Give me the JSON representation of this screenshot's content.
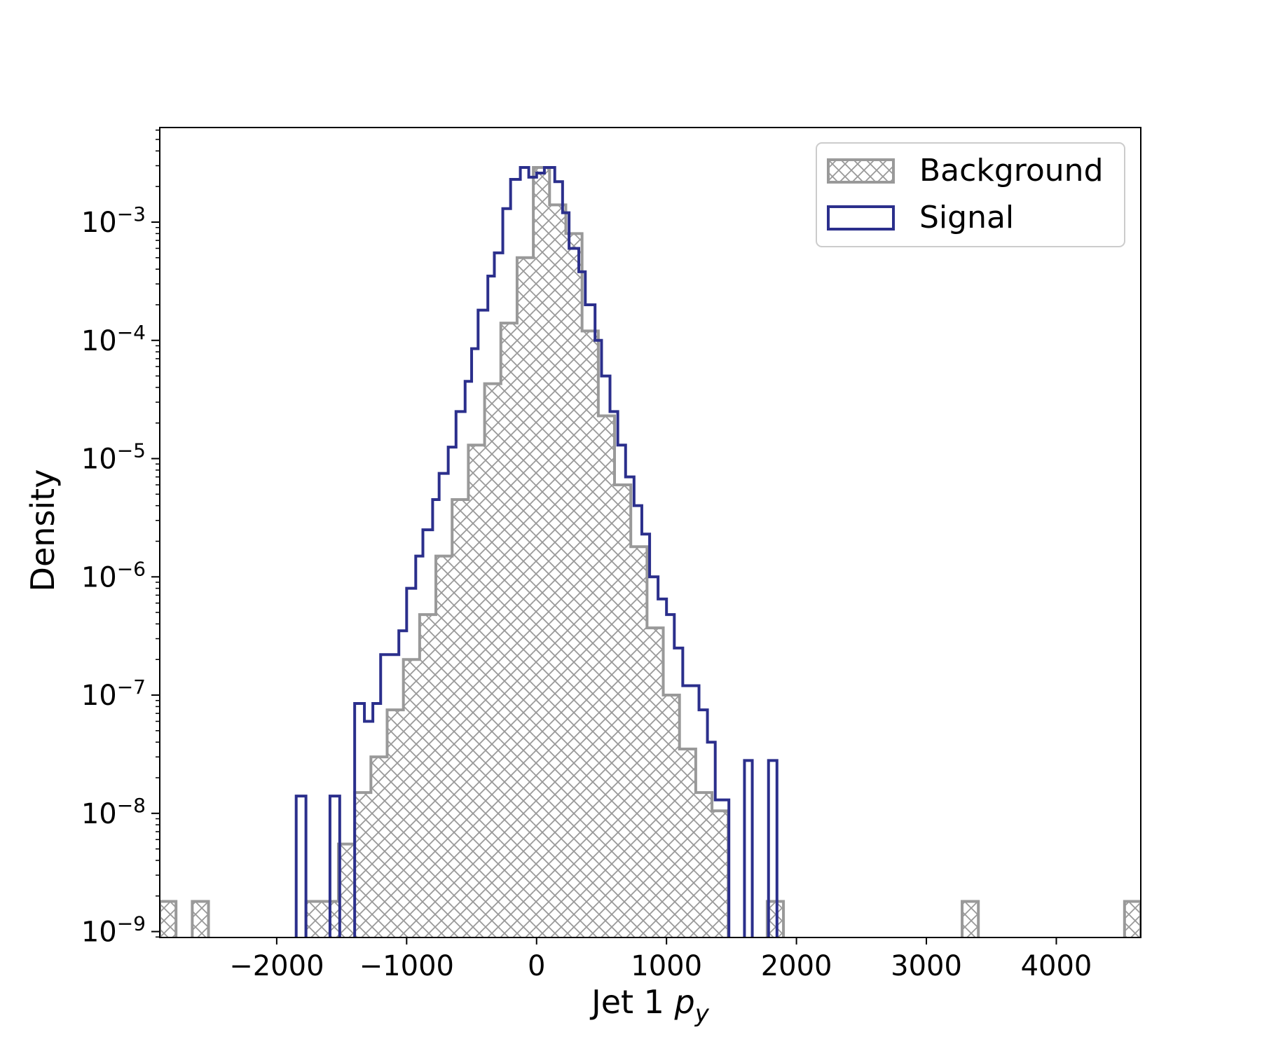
{
  "chart_data": {
    "type": "histogram",
    "xlabel": "Jet 1",
    "xlabel_symbol": "p",
    "xlabel_subscript": "y",
    "ylabel": "Density",
    "yscale": "log",
    "xlim": [
      -2900,
      4650
    ],
    "ylim_exponent": [
      -9.05,
      -2.2
    ],
    "grid": false,
    "legend_position": "top-right",
    "x_ticks": [
      {
        "value": -2000,
        "label": "−2000"
      },
      {
        "value": -1000,
        "label": "−1000"
      },
      {
        "value": 0,
        "label": "0"
      },
      {
        "value": 1000,
        "label": "1000"
      },
      {
        "value": 2000,
        "label": "2000"
      },
      {
        "value": 3000,
        "label": "3000"
      },
      {
        "value": 4000,
        "label": "4000"
      }
    ],
    "y_ticks": [
      {
        "exponent": -9,
        "base": "10",
        "sup": "−9"
      },
      {
        "exponent": -8,
        "base": "10",
        "sup": "−8"
      },
      {
        "exponent": -7,
        "base": "10",
        "sup": "−7"
      },
      {
        "exponent": -6,
        "base": "10",
        "sup": "−6"
      },
      {
        "exponent": -5,
        "base": "10",
        "sup": "−5"
      },
      {
        "exponent": -4,
        "base": "10",
        "sup": "−4"
      },
      {
        "exponent": -3,
        "base": "10",
        "sup": "−3"
      }
    ],
    "series": [
      {
        "name": "Background",
        "style": "hatched",
        "color": "#999999",
        "bins": [
          {
            "x0": -2900,
            "x1": -2775,
            "y": 1.8e-09
          },
          {
            "x0": -2650,
            "x1": -2525,
            "y": 1.8e-09
          },
          {
            "x0": -1775,
            "x1": -1525,
            "y": 1.8e-09
          },
          {
            "x0": -1525,
            "x1": -1400,
            "y": 5.5e-09
          },
          {
            "x0": -1400,
            "x1": -1275,
            "y": 1.5e-08
          },
          {
            "x0": -1275,
            "x1": -1150,
            "y": 3e-08
          },
          {
            "x0": -1150,
            "x1": -1025,
            "y": 7.5e-08
          },
          {
            "x0": -1025,
            "x1": -900,
            "y": 2e-07
          },
          {
            "x0": -900,
            "x1": -775,
            "y": 4.8e-07
          },
          {
            "x0": -775,
            "x1": -650,
            "y": 1.5e-06
          },
          {
            "x0": -650,
            "x1": -525,
            "y": 4.5e-06
          },
          {
            "x0": -525,
            "x1": -400,
            "y": 1.3e-05
          },
          {
            "x0": -400,
            "x1": -275,
            "y": 4.3e-05
          },
          {
            "x0": -275,
            "x1": -150,
            "y": 0.00014
          },
          {
            "x0": -150,
            "x1": -25,
            "y": 0.0005
          },
          {
            "x0": -25,
            "x1": 100,
            "y": 0.0029
          },
          {
            "x0": 100,
            "x1": 225,
            "y": 0.0014
          },
          {
            "x0": 225,
            "x1": 350,
            "y": 0.0008
          },
          {
            "x0": 350,
            "x1": 475,
            "y": 0.00012
          },
          {
            "x0": 475,
            "x1": 600,
            "y": 2.3e-05
          },
          {
            "x0": 600,
            "x1": 725,
            "y": 6e-06
          },
          {
            "x0": 725,
            "x1": 850,
            "y": 1.8e-06
          },
          {
            "x0": 850,
            "x1": 975,
            "y": 3.7e-07
          },
          {
            "x0": 975,
            "x1": 1100,
            "y": 1e-07
          },
          {
            "x0": 1100,
            "x1": 1225,
            "y": 3.5e-08
          },
          {
            "x0": 1225,
            "x1": 1350,
            "y": 1.5e-08
          },
          {
            "x0": 1350,
            "x1": 1475,
            "y": 1.05e-08
          },
          {
            "x0": 1775,
            "x1": 1900,
            "y": 1.8e-09
          },
          {
            "x0": 3275,
            "x1": 3400,
            "y": 1.8e-09
          },
          {
            "x0": 4525,
            "x1": 4650,
            "y": 1.8e-09
          }
        ]
      },
      {
        "name": "Signal",
        "style": "step",
        "color": "#2b2f8c",
        "bins": [
          {
            "x0": -1850,
            "x1": -1775,
            "y": 1.4e-08
          },
          {
            "x0": -1590,
            "x1": -1515,
            "y": 1.4e-08
          },
          {
            "x0": -1400,
            "x1": -1325,
            "y": 8.5e-08
          },
          {
            "x0": -1325,
            "x1": -1260,
            "y": 6e-08
          },
          {
            "x0": -1260,
            "x1": -1200,
            "y": 8.5e-08
          },
          {
            "x0": -1200,
            "x1": -1060,
            "y": 2.2e-07
          },
          {
            "x0": -1060,
            "x1": -1000,
            "y": 3.5e-07
          },
          {
            "x0": -1000,
            "x1": -930,
            "y": 8e-07
          },
          {
            "x0": -930,
            "x1": -875,
            "y": 1.5e-06
          },
          {
            "x0": -875,
            "x1": -800,
            "y": 2.5e-06
          },
          {
            "x0": -800,
            "x1": -750,
            "y": 4.5e-06
          },
          {
            "x0": -750,
            "x1": -680,
            "y": 7.5e-06
          },
          {
            "x0": -680,
            "x1": -620,
            "y": 1.25e-05
          },
          {
            "x0": -620,
            "x1": -550,
            "y": 2.5e-05
          },
          {
            "x0": -550,
            "x1": -500,
            "y": 4.5e-05
          },
          {
            "x0": -500,
            "x1": -450,
            "y": 8.5e-05
          },
          {
            "x0": -450,
            "x1": -375,
            "y": 0.00018
          },
          {
            "x0": -375,
            "x1": -325,
            "y": 0.00035
          },
          {
            "x0": -325,
            "x1": -260,
            "y": 0.00055
          },
          {
            "x0": -260,
            "x1": -200,
            "y": 0.0013
          },
          {
            "x0": -200,
            "x1": -125,
            "y": 0.0023
          },
          {
            "x0": -125,
            "x1": -60,
            "y": 0.0029
          },
          {
            "x0": -60,
            "x1": 0,
            "y": 0.0024
          },
          {
            "x0": 0,
            "x1": 60,
            "y": 0.0026
          },
          {
            "x0": 60,
            "x1": 140,
            "y": 0.0029
          },
          {
            "x0": 140,
            "x1": 200,
            "y": 0.0022
          },
          {
            "x0": 200,
            "x1": 250,
            "y": 0.0012
          },
          {
            "x0": 250,
            "x1": 325,
            "y": 0.0006
          },
          {
            "x0": 325,
            "x1": 375,
            "y": 0.00038
          },
          {
            "x0": 375,
            "x1": 450,
            "y": 0.0002
          },
          {
            "x0": 450,
            "x1": 500,
            "y": 0.0001
          },
          {
            "x0": 500,
            "x1": 565,
            "y": 5e-05
          },
          {
            "x0": 565,
            "x1": 625,
            "y": 2.5e-05
          },
          {
            "x0": 625,
            "x1": 685,
            "y": 1.3e-05
          },
          {
            "x0": 685,
            "x1": 750,
            "y": 7e-06
          },
          {
            "x0": 750,
            "x1": 810,
            "y": 4e-06
          },
          {
            "x0": 810,
            "x1": 870,
            "y": 2.3e-06
          },
          {
            "x0": 870,
            "x1": 935,
            "y": 1e-06
          },
          {
            "x0": 935,
            "x1": 1000,
            "y": 6.5e-07
          },
          {
            "x0": 1000,
            "x1": 1060,
            "y": 4.8e-07
          },
          {
            "x0": 1060,
            "x1": 1125,
            "y": 2.5e-07
          },
          {
            "x0": 1125,
            "x1": 1250,
            "y": 1.2e-07
          },
          {
            "x0": 1250,
            "x1": 1315,
            "y": 7.5e-08
          },
          {
            "x0": 1315,
            "x1": 1375,
            "y": 4e-08
          },
          {
            "x0": 1375,
            "x1": 1480,
            "y": 1.3e-08
          },
          {
            "x0": 1600,
            "x1": 1660,
            "y": 2.8e-08
          },
          {
            "x0": 1785,
            "x1": 1850,
            "y": 2.8e-08
          }
        ]
      }
    ]
  }
}
